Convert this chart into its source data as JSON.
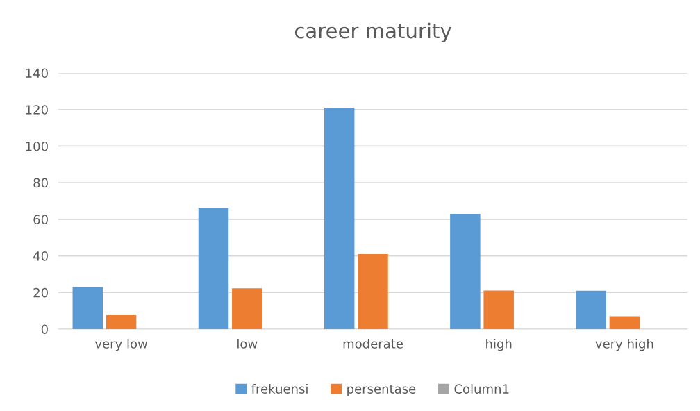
{
  "chart_data": {
    "type": "bar",
    "title": "career maturity",
    "categories": [
      "very low",
      "low",
      "moderate",
      "high",
      "very high"
    ],
    "series": [
      {
        "name": "frekuensi",
        "color": "#5b9bd5",
        "values": [
          23,
          66,
          121,
          63,
          21
        ]
      },
      {
        "name": "persentase",
        "color": "#ed7d31",
        "values": [
          7.6,
          22.3,
          41,
          21.1,
          7
        ]
      },
      {
        "name": "Column1",
        "color": "#a5a5a5",
        "values": [
          null,
          null,
          null,
          null,
          null
        ]
      }
    ],
    "ylim": [
      0,
      140
    ],
    "yticks": [
      0,
      20,
      40,
      60,
      80,
      100,
      120,
      140
    ],
    "grid": "y",
    "legend": "bottom"
  }
}
